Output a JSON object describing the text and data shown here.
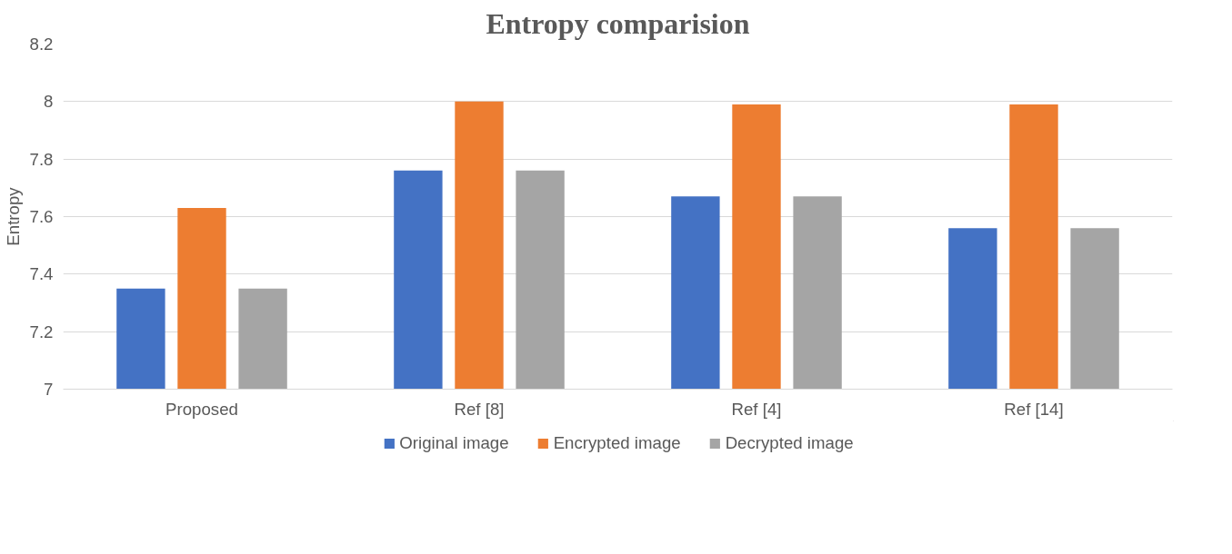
{
  "chart_data": {
    "type": "bar",
    "title": "Entropy comparision",
    "ylabel": "Entropy",
    "categories": [
      "Proposed",
      "Ref [8]",
      "Ref [4]",
      "Ref [14]"
    ],
    "series": [
      {
        "name": "Original image",
        "color": "#4472c4",
        "values": [
          7.35,
          7.76,
          7.67,
          7.56
        ]
      },
      {
        "name": "Encrypted image",
        "color": "#ed7d31",
        "values": [
          7.63,
          8.0,
          7.99,
          7.99
        ]
      },
      {
        "name": "Decrypted image",
        "color": "#a5a5a5",
        "values": [
          7.35,
          7.76,
          7.67,
          7.56
        ]
      }
    ],
    "ylim": [
      7,
      8.2
    ],
    "yticks": [
      7,
      7.2,
      7.4,
      7.6,
      7.8,
      8,
      8.2
    ],
    "grid": "y",
    "legend": "bottom"
  }
}
